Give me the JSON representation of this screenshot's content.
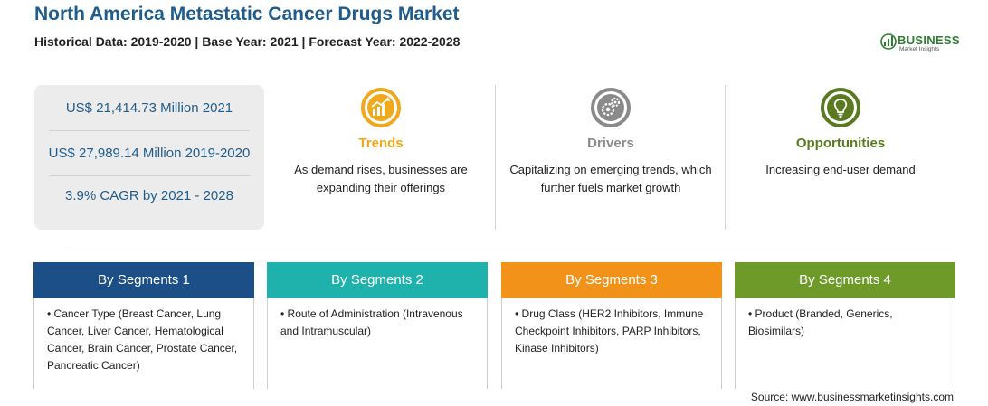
{
  "header": {
    "title": "North America Metastatic Cancer Drugs Market",
    "subtitle": "Historical Data: 2019-2020 | Base Year: 2021 | Forecast Year: 2022-2028"
  },
  "logo": {
    "name": "BUSINESS",
    "tagline": "Market Insights",
    "color": "#2f7d32"
  },
  "stats": [
    {
      "text": "US$ 21,414.73 Million 2021"
    },
    {
      "text": "US$ 27,989.14 Million 2019-2020"
    },
    {
      "text": "3.9% CAGR by 2021 - 2028"
    }
  ],
  "features": [
    {
      "title": "Trends",
      "text": "As demand rises, businesses are expanding their offerings",
      "icon": "trend-chart-icon",
      "color": "#f0a81c"
    },
    {
      "title": "Drivers",
      "text": "Capitalizing on emerging trends, which further fuels market growth",
      "icon": "gears-icon",
      "color": "#8a8a8a"
    },
    {
      "title": "Opportunities",
      "text": "Increasing end-user demand",
      "icon": "lightbulb-icon",
      "color": "#5a7a1f"
    }
  ],
  "segments": [
    {
      "title": "By Segments 1",
      "text": "Cancer Type (Breast Cancer, Lung Cancer, Liver Cancer, Hematological Cancer, Brain Cancer, Prostate Cancer, Pancreatic Cancer)",
      "color": "#1c4f87"
    },
    {
      "title": "By Segments 2",
      "text": "Route of Administration (Intravenous and Intramuscular)",
      "color": "#1fb2ad"
    },
    {
      "title": "By Segments 3",
      "text": "Drug Class (HER2 Inhibitors, Immune Checkpoint Inhibitors, PARP Inhibitors, Kinase Inhibitors)",
      "color": "#f29218"
    },
    {
      "title": "By Segments 4",
      "text": "Product (Branded, Generics, Biosimilars)",
      "color": "#6e9a2a"
    }
  ],
  "source": "Source: www.businessmarketinsights.com"
}
